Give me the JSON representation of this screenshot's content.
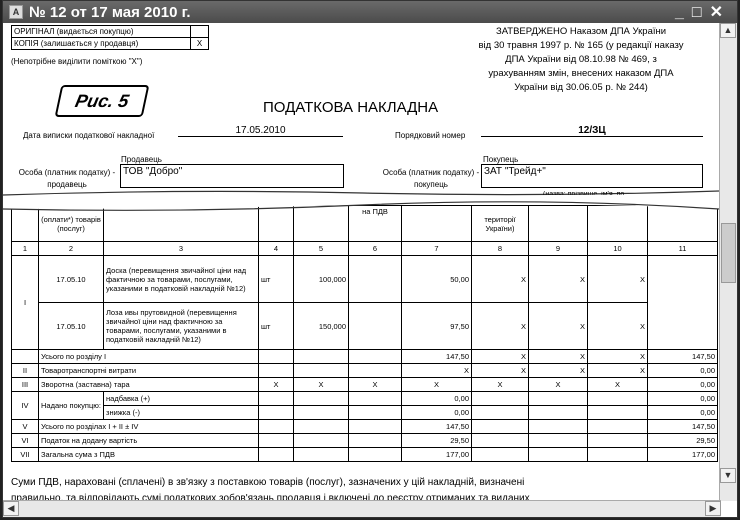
{
  "window": {
    "title": "№ 12 от 17 мая 2010 г.",
    "controls": [
      "_",
      "□",
      "✕"
    ]
  },
  "copy_box": {
    "rows": [
      {
        "label": "ОРИГІНАЛ (видається покупцю)",
        "mark": ""
      },
      {
        "label": "КОПІЯ (залишається у продавця)",
        "mark": "X"
      }
    ],
    "note": "(Непотрібне виділити поміткою \"Х\")"
  },
  "approval": [
    "ЗАТВЕРДЖЕНО Наказом ДПА України",
    "від 30 травня 1997 р. № 165 (у редакції наказу",
    "ДПА України від  08.10.98 № 469, з",
    "урахуванням змін, внесених наказом ДПА",
    "України від 30.06.05 р. № 244)"
  ],
  "stamp": "Рис. 5",
  "heading": "ПОДАТКОВА НАКЛАДНА",
  "date": {
    "label": "Дата виписки податкової накладної",
    "value": "17.05.2010"
  },
  "number": {
    "label": "Порядковий номер",
    "value": "12/ЗЦ"
  },
  "seller": {
    "caption": "Продавець",
    "label": "Особа (платник податку) - продавець",
    "value": "ТОВ \"Добро\""
  },
  "buyer": {
    "caption": "Покупець",
    "label": "Особа (платник податку) - покупець",
    "value": "ЗАТ \"Трейд+\"",
    "sub": "(назва; прізвище, ім'я, по"
  },
  "table": {
    "header_fragments": {
      "c2": "(оплати*) товарів (послуг)",
      "c6": "на ПДВ",
      "c8": "території України)"
    },
    "col_numbers": [
      "1",
      "2",
      "3",
      "4",
      "5",
      "6",
      "7",
      "8",
      "9",
      "10",
      "11"
    ],
    "items": [
      {
        "section": "I",
        "date": "17.05.10",
        "name": "Доска (перевищення звичайної ціни над фактичною за товарами, послугами, указаними в податковій накладній №12)",
        "unit": "шт",
        "qty": "100,000",
        "c7": "50,00",
        "c8": "X",
        "c9": "X",
        "c10": "X"
      },
      {
        "section": "",
        "date": "17.05.10",
        "name": "Лоза ивы прутовидной (перевищення звичайної ціни над фактичною за товарами, послугами, указаними в податковій накладній №12)",
        "unit": "шт",
        "qty": "150,000",
        "c7": "97,50",
        "c8": "X",
        "c9": "X",
        "c10": "X"
      }
    ],
    "summary": [
      {
        "section": "",
        "label": "Усього по розділу І",
        "c4": "",
        "c5": "",
        "c6": "",
        "c7": "147,50",
        "c8": "X",
        "c9": "X",
        "c10": "X",
        "c11": "147,50"
      },
      {
        "section": "II",
        "label": "Товаротранспортні витрати",
        "c4": "",
        "c5": "",
        "c6": "",
        "c7": "X",
        "c8": "X",
        "c9": "X",
        "c10": "X",
        "c11": "0,00"
      },
      {
        "section": "III",
        "label": "Зворотна (заставна) тара",
        "c4": "X",
        "c5": "X",
        "c6": "X",
        "c7": "X",
        "c8": "X",
        "c9": "X",
        "c10": "X",
        "c11": "0,00"
      }
    ],
    "iv": {
      "section": "IV",
      "label": "Надано покупцю:",
      "rows": [
        {
          "label": "надбавка (+)",
          "c7": "0,00",
          "c11": "0,00"
        },
        {
          "label": "знижка (-)",
          "c7": "0,00",
          "c11": "0,00"
        }
      ]
    },
    "totals": [
      {
        "section": "V",
        "label": "Усього по розділах І + ІІ ± ІV",
        "c7": "147,50",
        "c11": "147,50"
      },
      {
        "section": "VI",
        "label": "Податок на додану вартість",
        "c7": "29,50",
        "c11": "29,50"
      },
      {
        "section": "VII",
        "label": "Загальна сума з ПДВ",
        "c7": "177,00",
        "c11": "177,00"
      }
    ]
  },
  "footer_text": [
    "Суми ПДВ, нараховані (сплачені) в зв'язку з поставкою товарів (послуг), зазначених у цій накладній, визначені",
    "правильно, та відповідають сумі податкових зобов'язань продавця і включені до реєстру отриманих та виданих"
  ]
}
